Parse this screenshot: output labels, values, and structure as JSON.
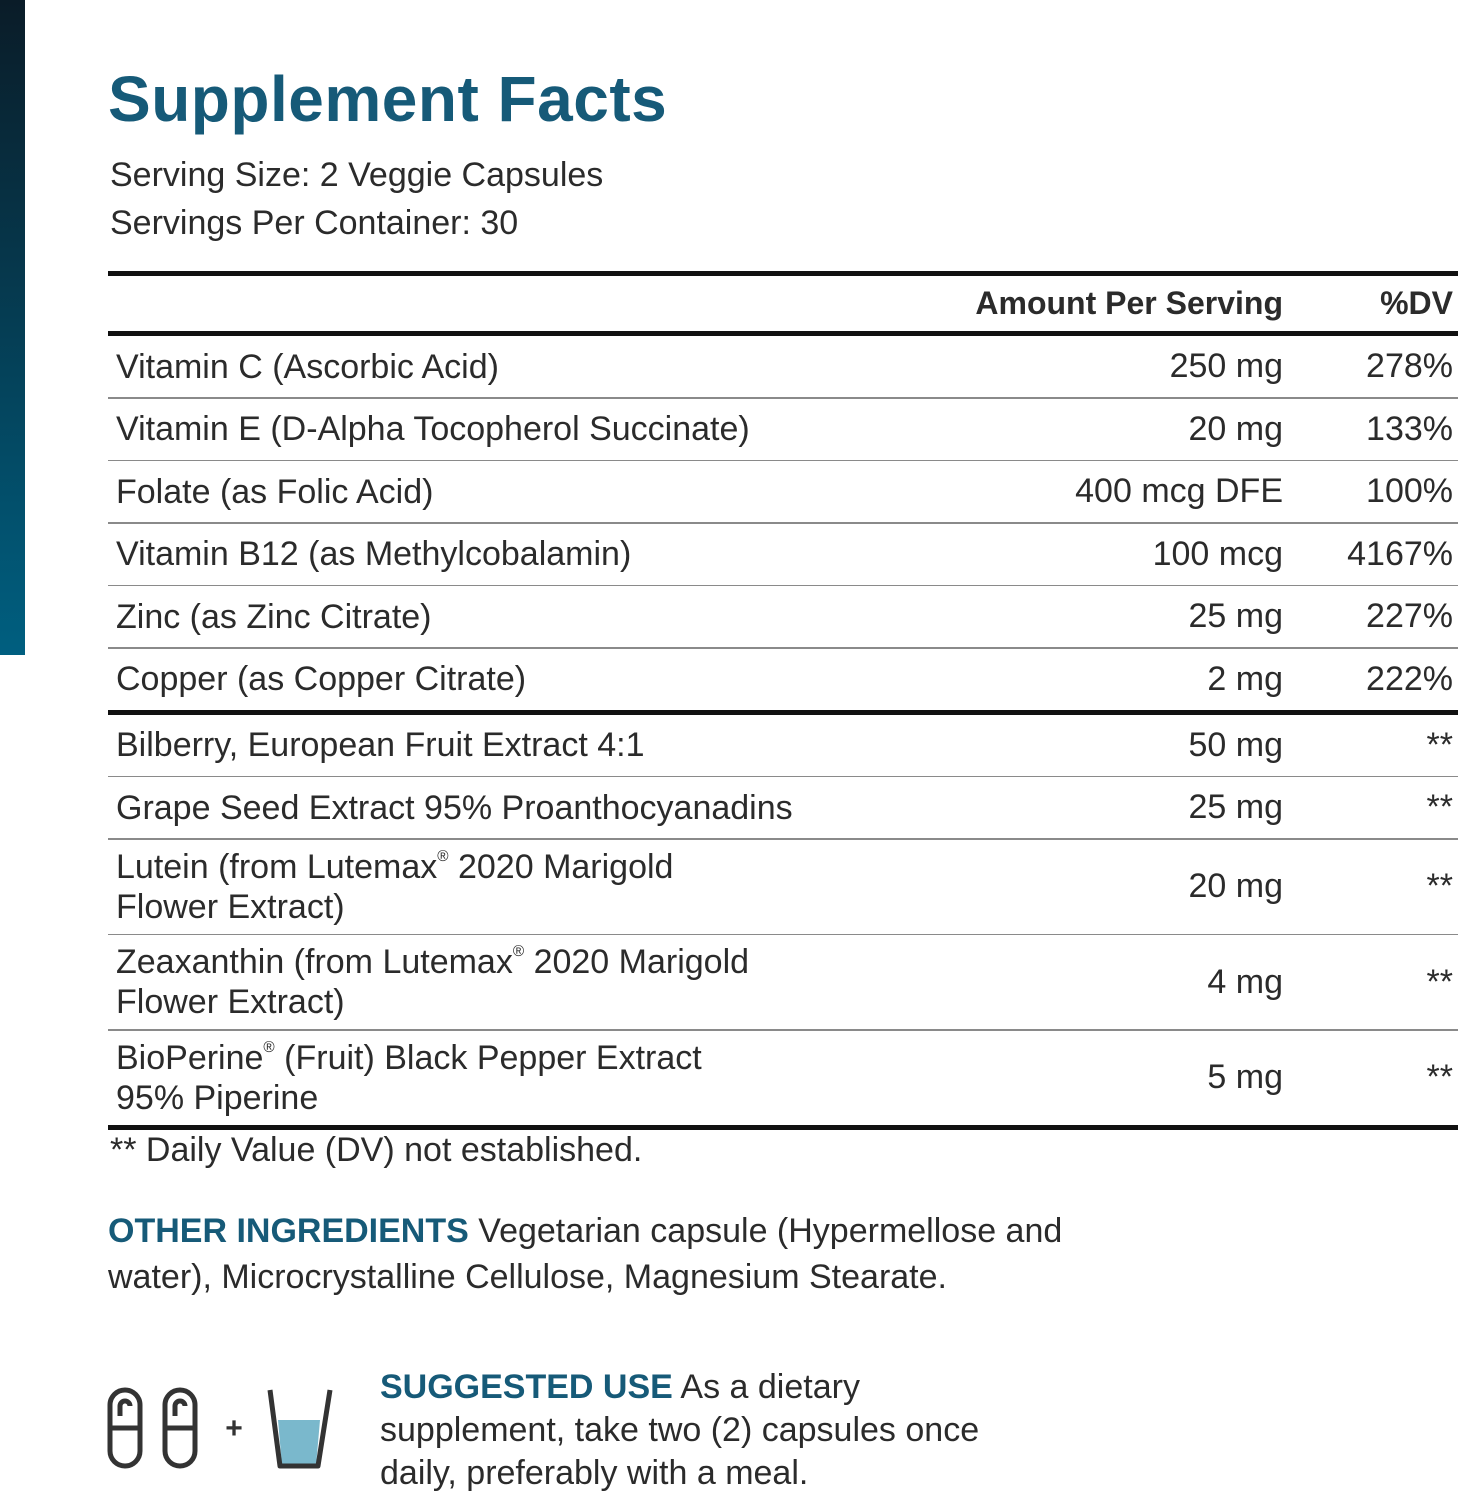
{
  "title": "Supplement Facts",
  "serving_size": "Serving Size: 2 Veggie Capsules",
  "servings_per_container": "Servings Per Container: 30",
  "table": {
    "header": [
      "Amount Per Serving",
      "%DV"
    ],
    "sections": [
      [
        {
          "name": [
            "Vitamin C (Ascorbic Acid)"
          ],
          "amount": "250 mg",
          "dv": "278%"
        },
        {
          "name": [
            "Vitamin E (D-Alpha Tocopherol Succinate)"
          ],
          "amount": "20 mg",
          "dv": "133%"
        },
        {
          "name": [
            "Folate (as Folic Acid)"
          ],
          "amount": "400 mcg DFE",
          "dv": "100%"
        },
        {
          "name": [
            "Vitamin B12 (as Methylcobalamin)"
          ],
          "amount": "100 mcg",
          "dv": "4167%"
        },
        {
          "name": [
            "Zinc (as Zinc Citrate)"
          ],
          "amount": "25 mg",
          "dv": "227%"
        },
        {
          "name": [
            "Copper (as Copper Citrate)"
          ],
          "amount": "2 mg",
          "dv": "222%"
        }
      ],
      [
        {
          "name": [
            "Bilberry, European Fruit Extract 4:1"
          ],
          "amount": "50 mg",
          "dv": "**"
        },
        {
          "name": [
            "Grape Seed Extract 95% Proanthocyanadins"
          ],
          "amount": "25 mg",
          "dv": "**"
        },
        {
          "name": [
            "Lutein (from Lutemax® 2020 Marigold",
            "Flower Extract)"
          ],
          "amount": "20 mg",
          "dv": "**"
        },
        {
          "name": [
            "Zeaxanthin (from Lutemax® 2020 Marigold",
            "Flower Extract)"
          ],
          "amount": "4 mg",
          "dv": "**"
        },
        {
          "name": [
            "BioPerine® (Fruit) Black Pepper Extract",
            "95% Piperine"
          ],
          "amount": "5 mg",
          "dv": "**"
        }
      ]
    ]
  },
  "footnote": "** Daily Value (DV) not established.",
  "other_ingredients": {
    "label": "OTHER INGREDIENTS",
    "text": "Vegetarian capsule (Hypermellose and water), Microcrystalline Cellulose, Magnesium Stearate."
  },
  "suggested_use": {
    "label": "SUGGESTED USE",
    "text": "As a dietary supplement, take two (2) capsules once daily, preferably with a meal.",
    "plus": "+"
  }
}
